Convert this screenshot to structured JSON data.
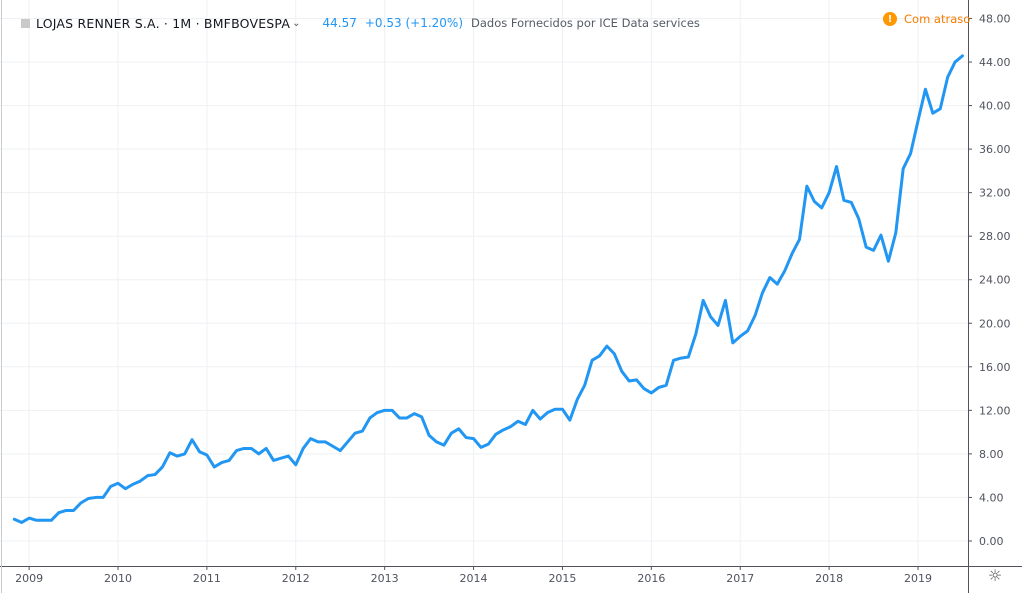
{
  "header": {
    "symbol": "LOJAS RENNER S.A. · 1M · BMFBOVESPA",
    "chevron": "⌄",
    "price": "44.57",
    "change": "+0.53 (+1.20%)",
    "provider": "Dados Fornecidos por ICE Data services",
    "delay_label": "Com atraso",
    "delay_icon": "!"
  },
  "colors": {
    "line": "#2196f3",
    "grid": "#eef0f3",
    "axis": "#50535e",
    "delay": "#ff9800"
  },
  "chart_data": {
    "type": "line",
    "title": "",
    "xlabel": "",
    "ylabel": "",
    "x_ticks": [
      "2009",
      "2010",
      "2011",
      "2012",
      "2013",
      "2014",
      "2015",
      "2016",
      "2017",
      "2018",
      "2019"
    ],
    "y_ticks": [
      "0.00",
      "4.00",
      "8.00",
      "12.00",
      "16.00",
      "20.00",
      "24.00",
      "28.00",
      "32.00",
      "36.00",
      "40.00",
      "44.00",
      "48.00"
    ],
    "ylim": [
      -2.3,
      49.7
    ],
    "xlim": [
      "2008-11",
      "2019-12"
    ],
    "grid": true,
    "series": [
      {
        "values": [
          [
            "2008-11",
            2.0
          ],
          [
            "2008-12",
            1.7
          ],
          [
            "2009-01",
            2.1
          ],
          [
            "2009-02",
            1.9
          ],
          [
            "2009-03",
            1.9
          ],
          [
            "2009-04",
            1.9
          ],
          [
            "2009-05",
            2.6
          ],
          [
            "2009-06",
            2.8
          ],
          [
            "2009-07",
            2.8
          ],
          [
            "2009-08",
            3.5
          ],
          [
            "2009-09",
            3.9
          ],
          [
            "2009-10",
            4.0
          ],
          [
            "2009-11",
            4.0
          ],
          [
            "2009-12",
            5.0
          ],
          [
            "2010-01",
            5.3
          ],
          [
            "2010-02",
            4.8
          ],
          [
            "2010-03",
            5.2
          ],
          [
            "2010-04",
            5.5
          ],
          [
            "2010-05",
            6.0
          ],
          [
            "2010-06",
            6.1
          ],
          [
            "2010-07",
            6.8
          ],
          [
            "2010-08",
            8.1
          ],
          [
            "2010-09",
            7.8
          ],
          [
            "2010-10",
            8.0
          ],
          [
            "2010-11",
            9.3
          ],
          [
            "2010-12",
            8.2
          ],
          [
            "2011-01",
            7.9
          ],
          [
            "2011-02",
            6.8
          ],
          [
            "2011-03",
            7.2
          ],
          [
            "2011-04",
            7.4
          ],
          [
            "2011-05",
            8.3
          ],
          [
            "2011-06",
            8.5
          ],
          [
            "2011-07",
            8.5
          ],
          [
            "2011-08",
            8.0
          ],
          [
            "2011-09",
            8.5
          ],
          [
            "2011-10",
            7.4
          ],
          [
            "2011-11",
            7.6
          ],
          [
            "2011-12",
            7.8
          ],
          [
            "2012-01",
            7.0
          ],
          [
            "2012-02",
            8.5
          ],
          [
            "2012-03",
            9.4
          ],
          [
            "2012-04",
            9.1
          ],
          [
            "2012-05",
            9.1
          ],
          [
            "2012-06",
            8.7
          ],
          [
            "2012-07",
            8.3
          ],
          [
            "2012-08",
            9.1
          ],
          [
            "2012-09",
            9.9
          ],
          [
            "2012-10",
            10.1
          ],
          [
            "2012-11",
            11.3
          ],
          [
            "2012-12",
            11.8
          ],
          [
            "2013-01",
            12.0
          ],
          [
            "2013-02",
            12.0
          ],
          [
            "2013-03",
            11.3
          ],
          [
            "2013-04",
            11.3
          ],
          [
            "2013-05",
            11.7
          ],
          [
            "2013-06",
            11.4
          ],
          [
            "2013-07",
            9.7
          ],
          [
            "2013-08",
            9.1
          ],
          [
            "2013-09",
            8.8
          ],
          [
            "2013-10",
            9.9
          ],
          [
            "2013-11",
            10.3
          ],
          [
            "2013-12",
            9.5
          ],
          [
            "2014-01",
            9.4
          ],
          [
            "2014-02",
            8.6
          ],
          [
            "2014-03",
            8.9
          ],
          [
            "2014-04",
            9.8
          ],
          [
            "2014-05",
            10.2
          ],
          [
            "2014-06",
            10.5
          ],
          [
            "2014-07",
            11.0
          ],
          [
            "2014-08",
            10.7
          ],
          [
            "2014-09",
            12.0
          ],
          [
            "2014-10",
            11.2
          ],
          [
            "2014-11",
            11.8
          ],
          [
            "2014-12",
            12.1
          ],
          [
            "2015-01",
            12.1
          ],
          [
            "2015-02",
            11.1
          ],
          [
            "2015-03",
            13.0
          ],
          [
            "2015-04",
            14.3
          ],
          [
            "2015-05",
            16.6
          ],
          [
            "2015-06",
            17.0
          ],
          [
            "2015-07",
            17.9
          ],
          [
            "2015-08",
            17.2
          ],
          [
            "2015-09",
            15.6
          ],
          [
            "2015-10",
            14.7
          ],
          [
            "2015-11",
            14.8
          ],
          [
            "2015-12",
            14.0
          ],
          [
            "2016-01",
            13.6
          ],
          [
            "2016-02",
            14.1
          ],
          [
            "2016-03",
            14.3
          ],
          [
            "2016-04",
            16.6
          ],
          [
            "2016-05",
            16.8
          ],
          [
            "2016-06",
            16.9
          ],
          [
            "2016-07",
            19.0
          ],
          [
            "2016-08",
            22.1
          ],
          [
            "2016-09",
            20.6
          ],
          [
            "2016-10",
            19.8
          ],
          [
            "2016-11",
            22.1
          ],
          [
            "2016-12",
            18.2
          ],
          [
            "2017-01",
            18.8
          ],
          [
            "2017-02",
            19.3
          ],
          [
            "2017-03",
            20.7
          ],
          [
            "2017-04",
            22.8
          ],
          [
            "2017-05",
            24.2
          ],
          [
            "2017-06",
            23.6
          ],
          [
            "2017-07",
            24.8
          ],
          [
            "2017-08",
            26.4
          ],
          [
            "2017-09",
            27.7
          ],
          [
            "2017-10",
            32.6
          ],
          [
            "2017-11",
            31.2
          ],
          [
            "2017-12",
            30.6
          ],
          [
            "2018-01",
            32.0
          ],
          [
            "2018-02",
            34.4
          ],
          [
            "2018-03",
            31.3
          ],
          [
            "2018-04",
            31.1
          ],
          [
            "2018-05",
            29.6
          ],
          [
            "2018-06",
            27.0
          ],
          [
            "2018-07",
            26.7
          ],
          [
            "2018-08",
            28.1
          ],
          [
            "2018-09",
            25.7
          ],
          [
            "2018-10",
            28.3
          ],
          [
            "2018-11",
            34.2
          ],
          [
            "2018-12",
            35.6
          ],
          [
            "2019-01",
            38.6
          ],
          [
            "2019-02",
            41.5
          ],
          [
            "2019-03",
            39.3
          ],
          [
            "2019-04",
            39.7
          ],
          [
            "2019-05",
            42.6
          ],
          [
            "2019-06",
            44.0
          ],
          [
            "2019-07",
            44.57
          ]
        ]
      }
    ]
  },
  "settings_icon": "☼"
}
